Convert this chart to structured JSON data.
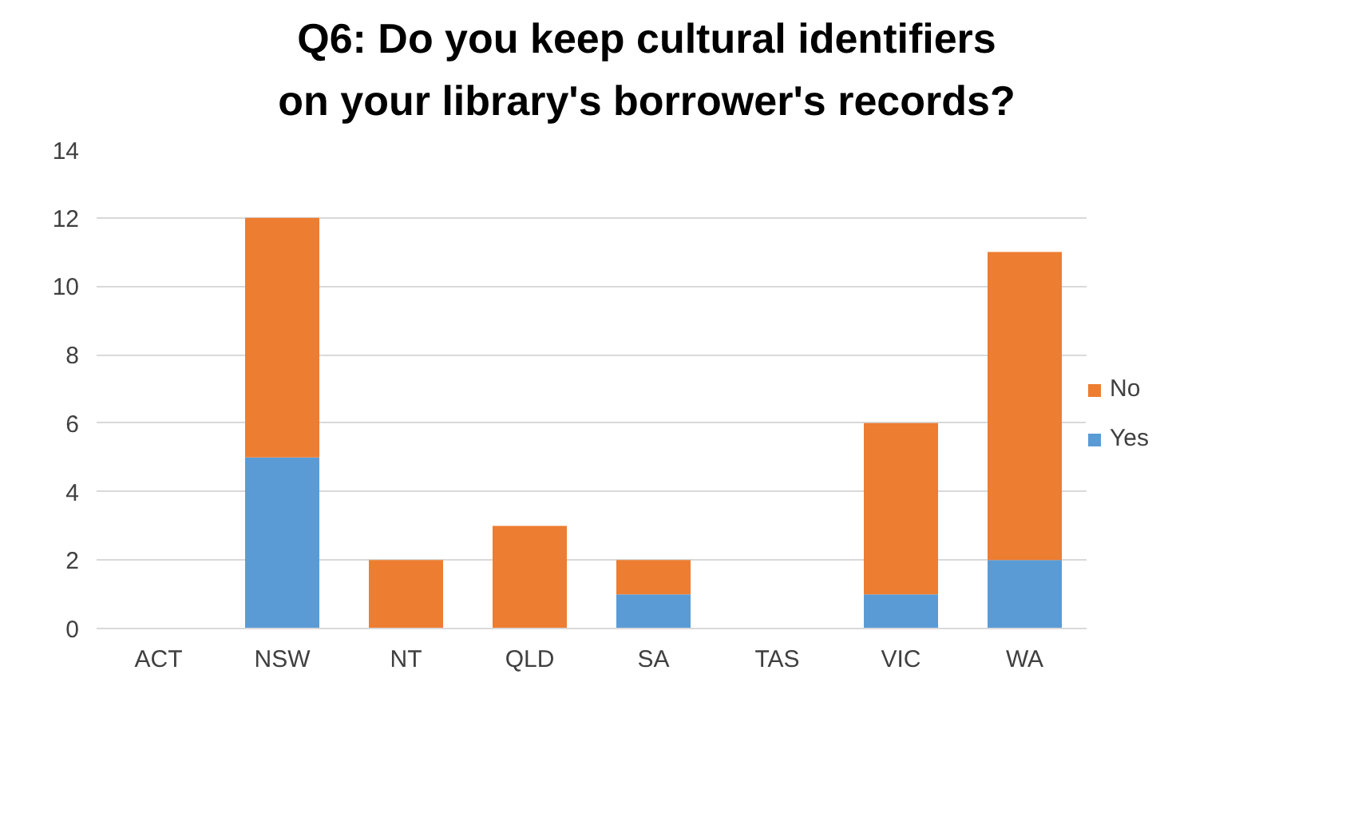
{
  "chart_data": {
    "type": "bar",
    "title": "Q6: Do you keep cultural identifiers on your library's borrower's records?",
    "categories": [
      "ACT",
      "NSW",
      "NT",
      "QLD",
      "SA",
      "TAS",
      "VIC",
      "WA"
    ],
    "stacked": true,
    "series": [
      {
        "name": "Yes",
        "color": "#5b9bd5",
        "values": [
          0,
          5,
          0,
          0,
          1,
          0,
          1,
          2
        ]
      },
      {
        "name": "No",
        "color": "#ed7d31",
        "values": [
          0,
          7,
          2,
          3,
          1,
          0,
          5,
          9
        ]
      }
    ],
    "ylim": [
      0,
      14
    ],
    "yticks": [
      0,
      2,
      4,
      6,
      8,
      10,
      12,
      14
    ],
    "grid": "y",
    "legend": "right"
  }
}
